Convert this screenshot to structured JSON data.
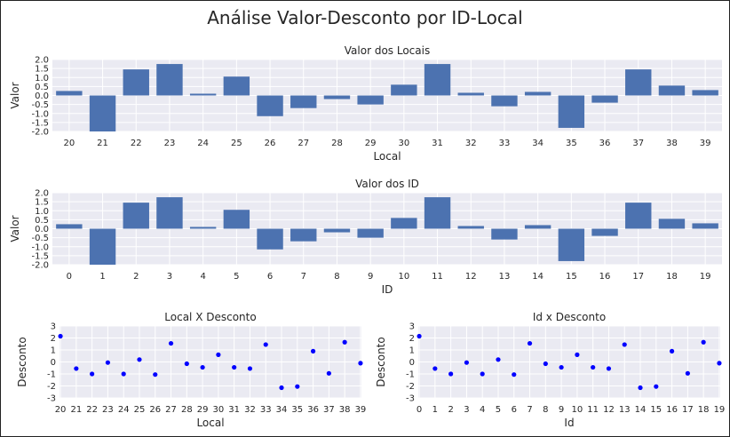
{
  "figure": {
    "suptitle": "Análise Valor-Desconto por ID-Local"
  },
  "colors": {
    "bar": "#4c72b0",
    "scatter": "#0000ff",
    "axes_bg": "#eaeaf2",
    "grid": "#ffffff"
  },
  "chart_data": [
    {
      "type": "bar",
      "title": "Valor dos Locais",
      "xlabel": "Local",
      "ylabel": "Valor",
      "ylim": [
        -2.0,
        2.0
      ],
      "yticks": [
        "2.0",
        "1.5",
        "1.0",
        "0.5",
        "0.0",
        "-0.5",
        "-1.0",
        "-1.5",
        "-2.0"
      ],
      "categories": [
        "20",
        "21",
        "22",
        "23",
        "24",
        "25",
        "26",
        "27",
        "28",
        "29",
        "30",
        "31",
        "32",
        "33",
        "34",
        "35",
        "36",
        "37",
        "38",
        "39"
      ],
      "values": [
        0.25,
        -2.1,
        1.45,
        1.75,
        0.1,
        1.05,
        -1.15,
        -0.7,
        -0.2,
        -0.5,
        0.6,
        1.75,
        0.15,
        -0.6,
        0.2,
        -1.8,
        -0.4,
        1.45,
        0.55,
        0.3
      ]
    },
    {
      "type": "bar",
      "title": "Valor dos ID",
      "xlabel": "ID",
      "ylabel": "Valor",
      "ylim": [
        -2.0,
        2.0
      ],
      "yticks": [
        "2.0",
        "1.5",
        "1.0",
        "0.5",
        "0.0",
        "-0.5",
        "-1.0",
        "-1.5",
        "-2.0"
      ],
      "categories": [
        "0",
        "1",
        "2",
        "3",
        "4",
        "5",
        "6",
        "7",
        "8",
        "9",
        "10",
        "11",
        "12",
        "13",
        "14",
        "15",
        "16",
        "17",
        "18",
        "19"
      ],
      "values": [
        0.25,
        -2.1,
        1.45,
        1.75,
        0.1,
        1.05,
        -1.15,
        -0.7,
        -0.2,
        -0.5,
        0.6,
        1.75,
        0.15,
        -0.6,
        0.2,
        -1.8,
        -0.4,
        1.45,
        0.55,
        0.3
      ]
    },
    {
      "type": "scatter",
      "title": "Local X Desconto",
      "xlabel": "Local",
      "ylabel": "Desconto",
      "ylim": [
        -3,
        3
      ],
      "yticks": [
        "3",
        "2",
        "1",
        "0",
        "-1",
        "-2",
        "-3"
      ],
      "categories": [
        "20",
        "21",
        "22",
        "23",
        "24",
        "25",
        "26",
        "27",
        "28",
        "29",
        "30",
        "31",
        "32",
        "33",
        "34",
        "35",
        "36",
        "37",
        "38",
        "39"
      ],
      "values": [
        2.15,
        -0.55,
        -1.0,
        -0.05,
        -1.0,
        0.2,
        -1.05,
        1.55,
        -0.15,
        -0.45,
        0.6,
        -0.45,
        -0.55,
        1.45,
        -2.15,
        -2.05,
        0.9,
        -0.95,
        1.65,
        -0.1
      ]
    },
    {
      "type": "scatter",
      "title": "Id x Desconto",
      "xlabel": "Id",
      "ylabel": "Desconto",
      "ylim": [
        -3,
        3
      ],
      "yticks": [
        "3",
        "2",
        "1",
        "0",
        "-1",
        "-2",
        "-3"
      ],
      "categories": [
        "0",
        "1",
        "2",
        "3",
        "4",
        "5",
        "6",
        "7",
        "8",
        "9",
        "10",
        "11",
        "12",
        "13",
        "14",
        "15",
        "16",
        "17",
        "18",
        "19"
      ],
      "values": [
        2.15,
        -0.55,
        -1.0,
        -0.05,
        -1.0,
        0.2,
        -1.05,
        1.55,
        -0.15,
        -0.45,
        0.6,
        -0.45,
        -0.55,
        1.45,
        -2.15,
        -2.05,
        0.9,
        -0.95,
        1.65,
        -0.1
      ]
    }
  ]
}
